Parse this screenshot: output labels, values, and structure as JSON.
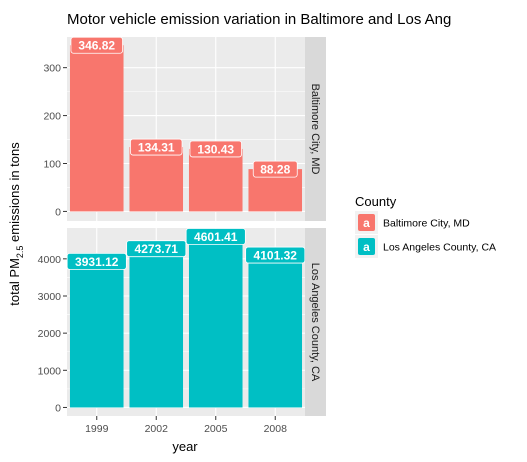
{
  "chart_data": {
    "type": "bar",
    "title": "Motor vehicle emission variation in Baltimore and Los Ang",
    "xlabel": "year",
    "ylabel": "total PM",
    "ylabel_subscript": "2.5",
    "ylabel_suffix": " emissions in tons",
    "categories": [
      "1999",
      "2002",
      "2005",
      "2008"
    ],
    "grid": true,
    "legend": {
      "title": "County",
      "position": "right",
      "key_glyph": "a"
    },
    "series": [
      {
        "name": "Baltimore City, MD",
        "color": "#F8766D",
        "values": [
          346.82,
          134.31,
          130.43,
          88.28
        ],
        "labels": [
          "346.82",
          "134.31",
          "130.43",
          "88.28"
        ],
        "ylim": [
          -20,
          364
        ],
        "yticks": [
          0,
          100,
          200,
          300
        ]
      },
      {
        "name": "Los Angeles County, CA",
        "color": "#00BFC4",
        "values": [
          3931.12,
          4273.71,
          4601.41,
          4101.32
        ],
        "labels": [
          "3931.12",
          "4273.71",
          "4601.41",
          "4101.32"
        ],
        "ylim": [
          -230,
          4830
        ],
        "yticks": [
          0,
          1000,
          2000,
          3000,
          4000
        ]
      }
    ]
  }
}
